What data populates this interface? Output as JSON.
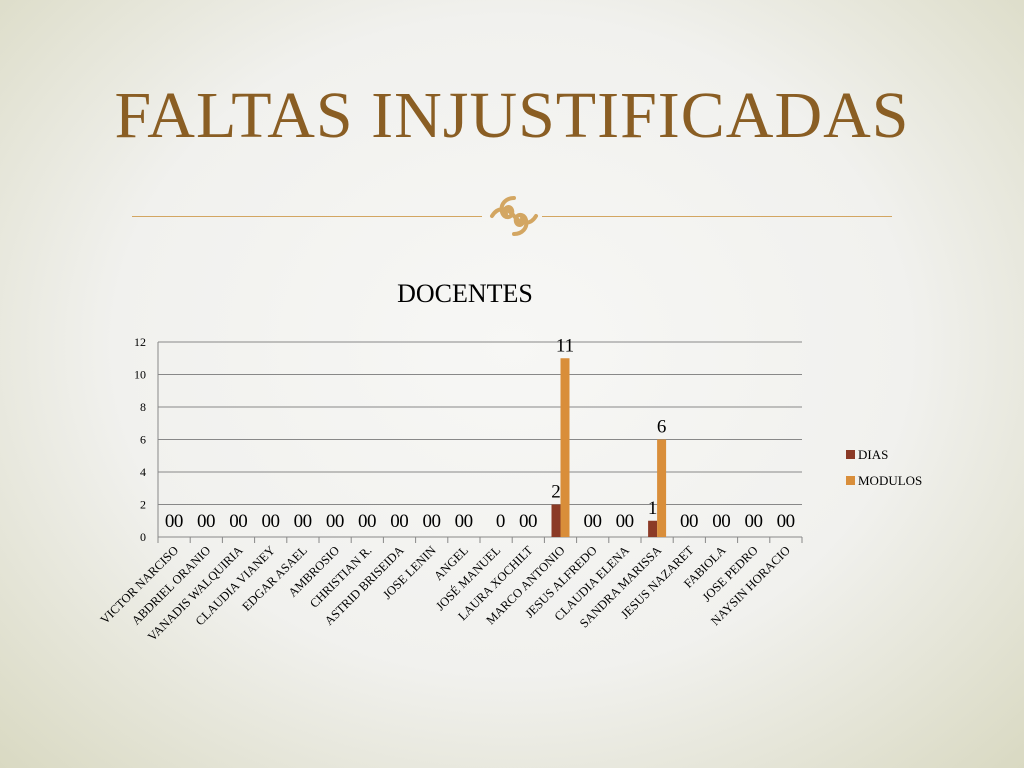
{
  "slide": {
    "title": "FALTAS INJUSTIFICADAS",
    "accent_color": "#8a5e24",
    "rule_color": "#d3a662",
    "ornament_icon": "flourish-icon"
  },
  "chart_data": {
    "type": "bar",
    "title": "DOCENTES",
    "xlabel": "",
    "ylabel": "",
    "ylim": [
      0,
      12
    ],
    "yticks": [
      0,
      2,
      4,
      6,
      8,
      10,
      12
    ],
    "grid": true,
    "legend_position": "right",
    "categories": [
      "VICTOR NARCISO",
      "ABDRIEL ORANIO",
      "VANADIS WALQUIRIA",
      "CLAUDIA VIANEY",
      "EDGAR ASAEL",
      "AMBROSIO",
      "CHRISTIAN R.",
      "ASTRID BRISEIDA",
      "JOSE LENIN",
      "ANGEL",
      "JOSÉ MANUEL",
      "LAURA XOCHILT",
      "MARCO ANTONIO",
      "JESUS ALFREDO",
      "CLAUDIA ELENA",
      "SANDRA MARISSA",
      "JESUS NAZARET",
      "FABIOLA",
      "JOSE PEDRO",
      "NAYSIN HORACIO"
    ],
    "series": [
      {
        "name": "DIAS",
        "color": "#8b3a26",
        "values": [
          0,
          0,
          0,
          0,
          0,
          0,
          0,
          0,
          0,
          0,
          null,
          0,
          2,
          0,
          0,
          1,
          0,
          0,
          0,
          0
        ],
        "data_labels": [
          "0",
          "0",
          "0",
          "0",
          "0",
          "0",
          "0",
          "0",
          "0",
          "0",
          "",
          "0",
          "2",
          "0",
          "0",
          "1",
          "0",
          "0",
          "0",
          "0"
        ]
      },
      {
        "name": "MODULOS",
        "color": "#d98e3a",
        "values": [
          0,
          0,
          0,
          0,
          0,
          0,
          0,
          0,
          0,
          0,
          0,
          0,
          11,
          0,
          0,
          6,
          0,
          0,
          0,
          0
        ],
        "data_labels": [
          "0",
          "0",
          "0",
          "0",
          "0",
          "0",
          "0",
          "0",
          "0",
          "0",
          "0",
          "0",
          "11",
          "0",
          "0",
          "6",
          "0",
          "0",
          "0",
          "0"
        ]
      }
    ]
  }
}
